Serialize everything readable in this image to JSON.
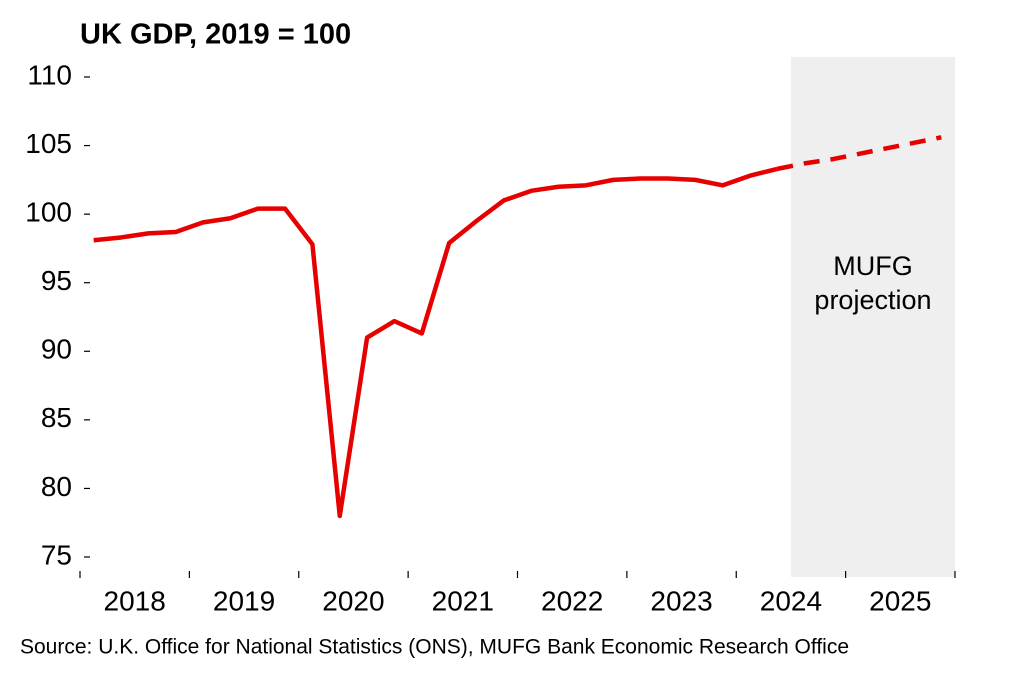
{
  "chart_data": {
    "type": "line",
    "title": "UK GDP, 2019 = 100",
    "source": "Source: U.K. Office for National Statistics (ONS), MUFG Bank Economic Research Office",
    "annotation": [
      "MUFG",
      "projection"
    ],
    "years": [
      "2018",
      "2019",
      "2020",
      "2021",
      "2022",
      "2023",
      "2024",
      "2025"
    ],
    "series": [
      {
        "color": "#e60000",
        "dash": false,
        "values": [
          98.1,
          98.3,
          98.6,
          98.7,
          99.4,
          99.7,
          100.4,
          100.4,
          97.8,
          78.0,
          91.0,
          92.2,
          91.3,
          97.9,
          99.5,
          101.0,
          101.7,
          102.0,
          102.1,
          102.5,
          102.6,
          102.6,
          102.5,
          102.1,
          102.8,
          103.3,
          null,
          null,
          null,
          null,
          null,
          null
        ]
      },
      {
        "color": "#e60000",
        "dash": true,
        "values": [
          null,
          null,
          null,
          null,
          null,
          null,
          null,
          null,
          null,
          null,
          null,
          null,
          null,
          null,
          null,
          null,
          null,
          null,
          null,
          null,
          null,
          null,
          null,
          null,
          null,
          103.3,
          103.7,
          104.0,
          104.4,
          104.8,
          105.2,
          105.6
        ]
      }
    ],
    "ylim": [
      75,
      110
    ],
    "yticks": [
      75,
      80,
      85,
      90,
      95,
      100,
      105,
      110
    ],
    "shade_color": "#efefef"
  }
}
